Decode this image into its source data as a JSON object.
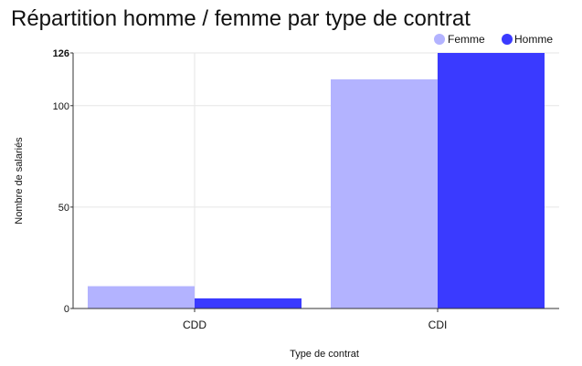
{
  "chart_data": {
    "type": "bar",
    "title": "Répartition homme / femme par type de contrat",
    "xlabel": "Type de contrat",
    "ylabel": "Nombre de salariés",
    "categories": [
      "CDD",
      "CDI"
    ],
    "series": [
      {
        "name": "Femme",
        "values": [
          11,
          113
        ],
        "color": "#b3b3ff"
      },
      {
        "name": "Homme",
        "values": [
          5,
          126
        ],
        "color": "#3a3aff"
      }
    ],
    "ylim": [
      0,
      126
    ],
    "yticks": [
      "0",
      "50",
      "100",
      "126"
    ],
    "legend": "top-right",
    "grid": true
  }
}
